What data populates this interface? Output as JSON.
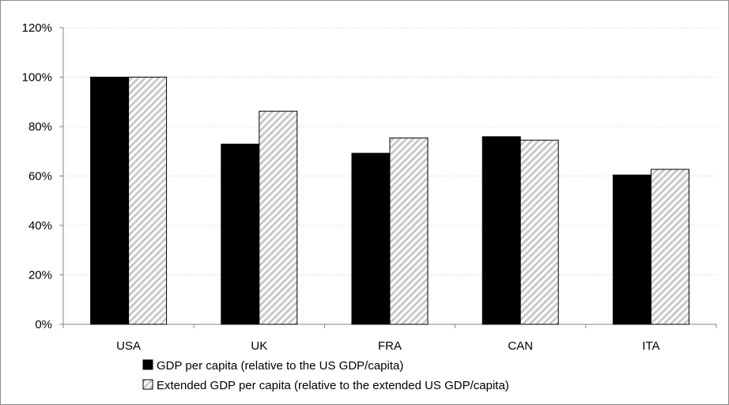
{
  "chart_data": {
    "type": "bar",
    "categories": [
      "USA",
      "UK",
      "FRA",
      "CAN",
      "ITA"
    ],
    "series": [
      {
        "name": "GDP per capita (relative to the US GDP/capita)",
        "values": [
          100,
          72.9,
          69.2,
          75.9,
          60.4
        ],
        "color": "#000000",
        "pattern": "solid"
      },
      {
        "name": "Extended GDP per capita (relative to the extended US GDP/capita)",
        "values": [
          100,
          86.2,
          75.4,
          74.5,
          62.7
        ],
        "color": "#d9d9d9",
        "pattern": "diagonal-hatch"
      }
    ],
    "yticks": [
      "0%",
      "20%",
      "40%",
      "60%",
      "80%",
      "100%",
      "120%"
    ],
    "ylim": [
      0,
      120
    ],
    "grid": true,
    "legend_position": "bottom",
    "title": "",
    "xlabel": "",
    "ylabel": ""
  }
}
